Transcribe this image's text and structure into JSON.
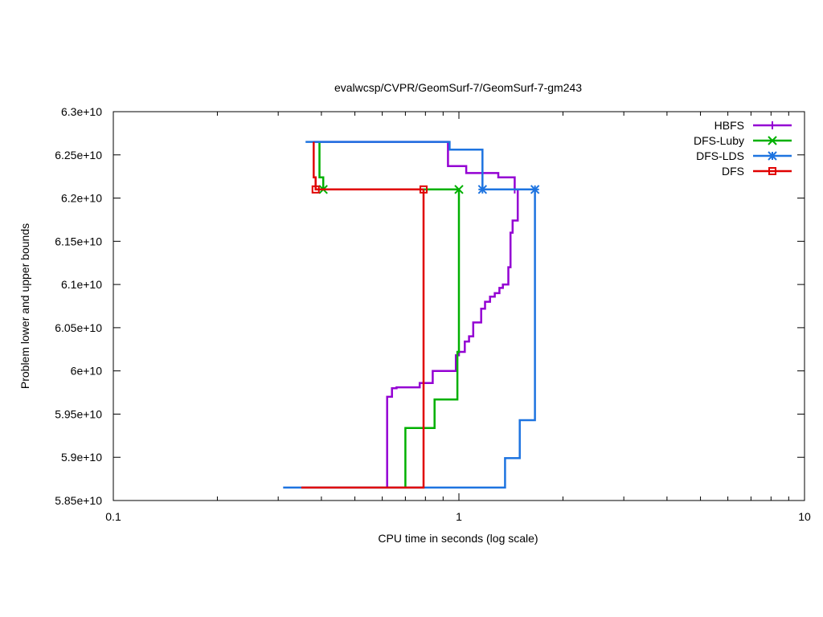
{
  "chart_data": {
    "type": "line",
    "title": "evalwcsp/CVPR/GeomSurf-7/GeomSurf-7-gm243",
    "xlabel": "CPU time in seconds (log scale)",
    "ylabel": "Problem lower and upper bounds",
    "xscale": "log",
    "xlim": [
      0.1,
      10
    ],
    "ylim": [
      58500000000,
      63000000000
    ],
    "x_ticks": [
      {
        "value": 0.1,
        "label": "0.1"
      },
      {
        "value": 1,
        "label": "1"
      },
      {
        "value": 10,
        "label": "10"
      }
    ],
    "y_ticks": [
      {
        "value": 58500000000,
        "label": "5.85e+10"
      },
      {
        "value": 59000000000,
        "label": "5.9e+10"
      },
      {
        "value": 59500000000,
        "label": "5.95e+10"
      },
      {
        "value": 60000000000,
        "label": "6e+10"
      },
      {
        "value": 60500000000,
        "label": "6.05e+10"
      },
      {
        "value": 61000000000,
        "label": "6.1e+10"
      },
      {
        "value": 61500000000,
        "label": "6.15e+10"
      },
      {
        "value": 62000000000,
        "label": "6.2e+10"
      },
      {
        "value": 62500000000,
        "label": "6.25e+10"
      },
      {
        "value": 63000000000,
        "label": "6.3e+10"
      }
    ],
    "grid": false,
    "legend_position": "top-right",
    "series": [
      {
        "name": "HBFS",
        "color": "#9400d3",
        "marker": "plus",
        "upper": [
          [
            0.38,
            62650000000
          ],
          [
            0.93,
            62650000000
          ],
          [
            0.93,
            62370000000
          ],
          [
            1.05,
            62370000000
          ],
          [
            1.05,
            62290000000
          ],
          [
            1.3,
            62290000000
          ],
          [
            1.3,
            62240000000
          ],
          [
            1.45,
            62240000000
          ],
          [
            1.45,
            62100000000
          ]
        ],
        "lower": [
          [
            0.62,
            58650000000
          ],
          [
            0.62,
            59700000000
          ],
          [
            0.64,
            59700000000
          ],
          [
            0.64,
            59800000000
          ],
          [
            0.66,
            59800000000
          ],
          [
            0.66,
            59810000000
          ],
          [
            0.77,
            59810000000
          ],
          [
            0.77,
            59860000000
          ],
          [
            0.84,
            59860000000
          ],
          [
            0.84,
            60000000000
          ],
          [
            0.98,
            60000000000
          ],
          [
            0.98,
            60180000000
          ],
          [
            1.0,
            60180000000
          ],
          [
            1.0,
            60220000000
          ],
          [
            1.04,
            60220000000
          ],
          [
            1.04,
            60340000000
          ],
          [
            1.07,
            60340000000
          ],
          [
            1.07,
            60400000000
          ],
          [
            1.1,
            60400000000
          ],
          [
            1.1,
            60560000000
          ],
          [
            1.16,
            60560000000
          ],
          [
            1.16,
            60720000000
          ],
          [
            1.19,
            60720000000
          ],
          [
            1.19,
            60800000000
          ],
          [
            1.23,
            60800000000
          ],
          [
            1.23,
            60860000000
          ],
          [
            1.27,
            60860000000
          ],
          [
            1.27,
            60900000000
          ],
          [
            1.31,
            60900000000
          ],
          [
            1.31,
            60960000000
          ],
          [
            1.34,
            60960000000
          ],
          [
            1.34,
            61000000000
          ],
          [
            1.39,
            61000000000
          ],
          [
            1.39,
            61200000000
          ],
          [
            1.41,
            61200000000
          ],
          [
            1.41,
            61600000000
          ],
          [
            1.43,
            61600000000
          ],
          [
            1.43,
            61740000000
          ],
          [
            1.48,
            61740000000
          ],
          [
            1.48,
            62100000000
          ]
        ],
        "markers": [
          [
            1.45,
            62100000000
          ]
        ]
      },
      {
        "name": "DFS-Luby",
        "color": "#00b000",
        "marker": "x",
        "upper": [
          [
            0.395,
            62650000000
          ],
          [
            0.395,
            62240000000
          ],
          [
            0.405,
            62240000000
          ],
          [
            0.405,
            62100000000
          ],
          [
            1.0,
            62100000000
          ]
        ],
        "lower": [
          [
            0.7,
            58650000000
          ],
          [
            0.7,
            59340000000
          ],
          [
            0.85,
            59340000000
          ],
          [
            0.85,
            59670000000
          ],
          [
            0.99,
            59670000000
          ],
          [
            0.99,
            60220000000
          ],
          [
            1.0,
            60220000000
          ],
          [
            1.0,
            62100000000
          ]
        ],
        "markers": [
          [
            0.405,
            62100000000
          ],
          [
            1.0,
            62100000000
          ]
        ]
      },
      {
        "name": "DFS-LDS",
        "color": "#1e74e0",
        "marker": "star",
        "upper": [
          [
            0.36,
            62650000000
          ],
          [
            0.94,
            62650000000
          ],
          [
            0.94,
            62560000000
          ],
          [
            1.17,
            62560000000
          ],
          [
            1.17,
            62100000000
          ],
          [
            1.66,
            62100000000
          ]
        ],
        "lower": [
          [
            0.31,
            58650000000
          ],
          [
            1.36,
            58650000000
          ],
          [
            1.36,
            58990000000
          ],
          [
            1.5,
            58990000000
          ],
          [
            1.5,
            59430000000
          ],
          [
            1.66,
            59430000000
          ],
          [
            1.66,
            62100000000
          ]
        ],
        "markers": [
          [
            1.17,
            62100000000
          ],
          [
            1.66,
            62100000000
          ]
        ]
      },
      {
        "name": "DFS",
        "color": "#e00000",
        "marker": "square",
        "upper": [
          [
            0.38,
            62650000000
          ],
          [
            0.38,
            62240000000
          ],
          [
            0.385,
            62240000000
          ],
          [
            0.385,
            62100000000
          ],
          [
            0.79,
            62100000000
          ]
        ],
        "lower": [
          [
            0.35,
            58650000000
          ],
          [
            0.79,
            58650000000
          ],
          [
            0.79,
            62100000000
          ]
        ],
        "markers": [
          [
            0.385,
            62100000000
          ],
          [
            0.79,
            62100000000
          ]
        ]
      }
    ]
  }
}
